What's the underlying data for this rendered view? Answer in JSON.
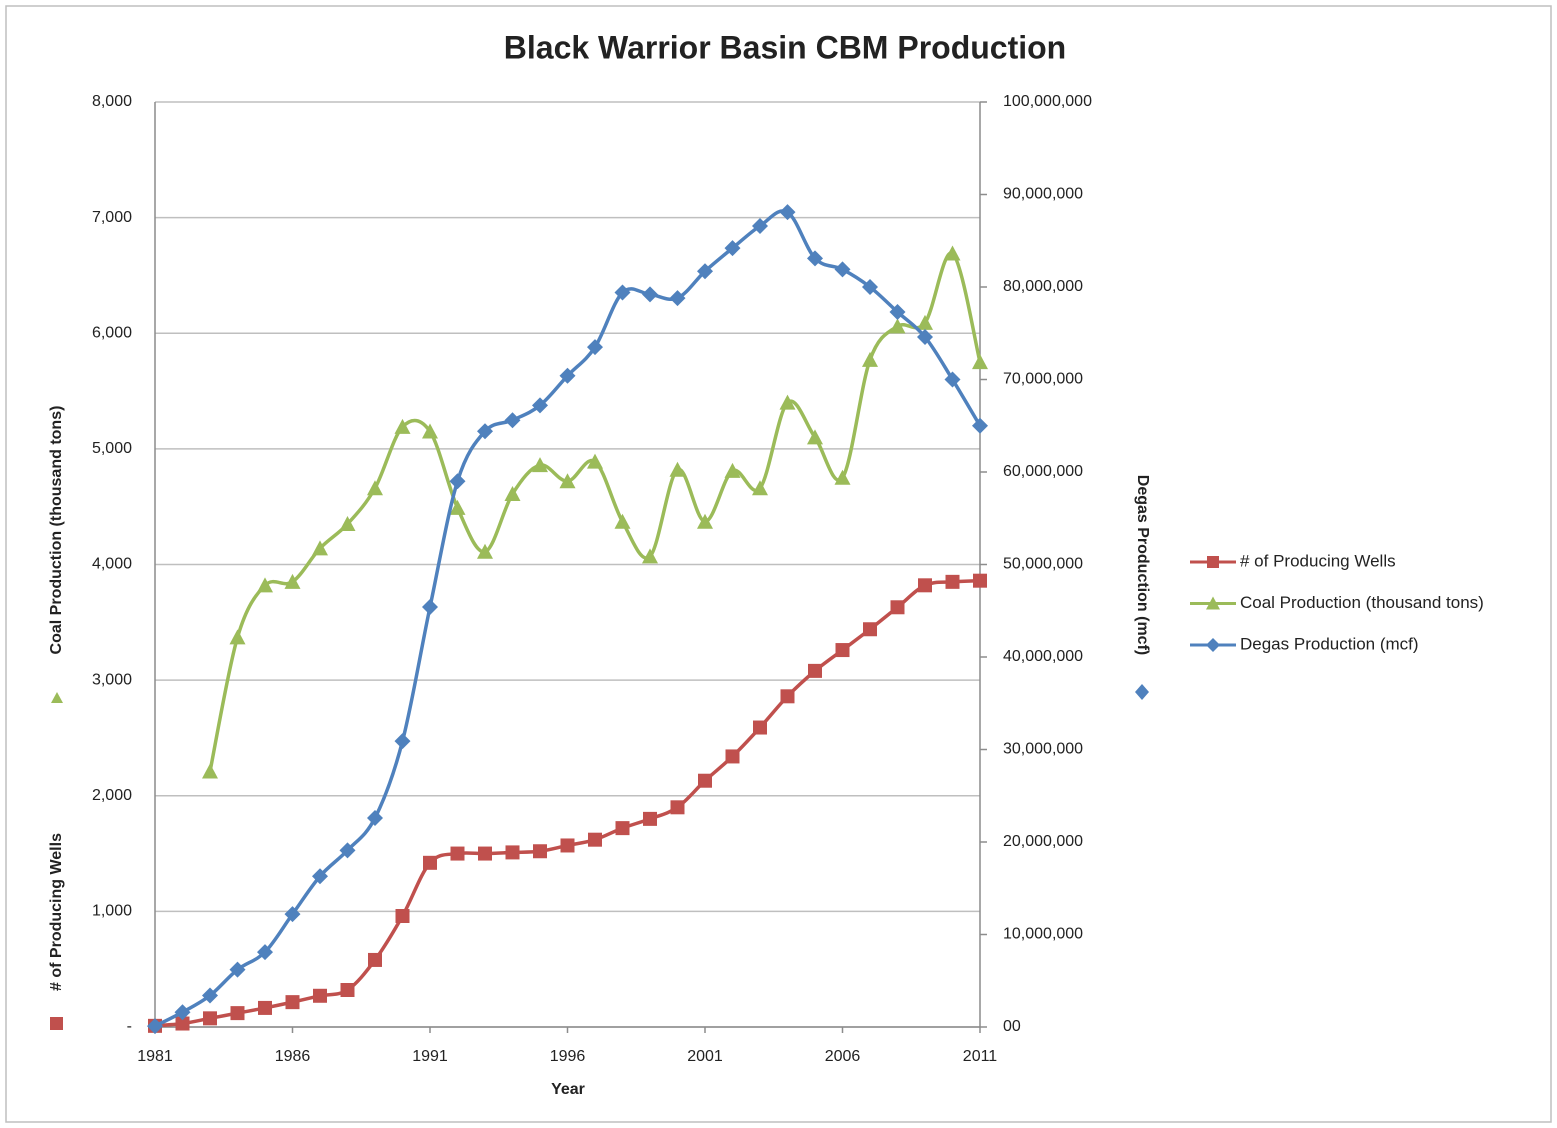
{
  "chart_data": {
    "type": "line",
    "title": "Black Warrior Basin CBM Production",
    "xlabel": "Year",
    "ylabels": [
      "# of Producing Wells",
      "Coal Production  (thousand tons)"
    ],
    "y2label": "Degas Production (mcf)",
    "x": [
      1981,
      1982,
      1983,
      1984,
      1985,
      1986,
      1987,
      1988,
      1989,
      1990,
      1991,
      1992,
      1993,
      1994,
      1995,
      1996,
      1997,
      1998,
      1999,
      2000,
      2001,
      2002,
      2003,
      2004,
      2005,
      2006,
      2007,
      2008,
      2009,
      2010,
      2011
    ],
    "xlim": [
      1981,
      2011
    ],
    "xticks": [
      1981,
      1986,
      1991,
      1996,
      2001,
      2006,
      2011
    ],
    "ylim": [
      0,
      8000
    ],
    "yticks": [
      {
        "value": 0,
        "label": "-"
      },
      {
        "value": 1000,
        "label": "1,000"
      },
      {
        "value": 2000,
        "label": "2,000"
      },
      {
        "value": 3000,
        "label": "3,000"
      },
      {
        "value": 4000,
        "label": "4,000"
      },
      {
        "value": 5000,
        "label": "5,000"
      },
      {
        "value": 6000,
        "label": "6,000"
      },
      {
        "value": 7000,
        "label": "7,000"
      },
      {
        "value": 8000,
        "label": "8,000"
      }
    ],
    "y2lim": [
      0,
      100000000
    ],
    "y2ticks": [
      {
        "value": 0,
        "label": "00"
      },
      {
        "value": 10000000,
        "label": "10,000,000"
      },
      {
        "value": 20000000,
        "label": "20,000,000"
      },
      {
        "value": 30000000,
        "label": "30,000,000"
      },
      {
        "value": 40000000,
        "label": "40,000,000"
      },
      {
        "value": 50000000,
        "label": "50,000,000"
      },
      {
        "value": 60000000,
        "label": "60,000,000"
      },
      {
        "value": 70000000,
        "label": "70,000,000"
      },
      {
        "value": 80000000,
        "label": "80,000,000"
      },
      {
        "value": 90000000,
        "label": "90,000,000"
      },
      {
        "value": 100000000,
        "label": "100,000,000"
      }
    ],
    "grid": true,
    "smooth": true,
    "legend": "right",
    "series": [
      {
        "name": "# of Producing Wells",
        "color": "#c0504d",
        "marker": "square",
        "values": [
          10,
          30,
          75,
          120,
          165,
          215,
          270,
          320,
          580,
          960,
          1420,
          1500,
          1500,
          1510,
          1520,
          1570,
          1620,
          1720,
          1800,
          1900,
          2130,
          2340,
          2590,
          2860,
          3080,
          3260,
          3440,
          3630,
          3820,
          3850,
          3860
        ]
      },
      {
        "name": "Coal Production (thousand tons)",
        "color": "#9bbb59",
        "marker": "triangle",
        "values": [
          null,
          null,
          2210,
          3370,
          3820,
          3850,
          4140,
          4350,
          4660,
          5190,
          5150,
          4490,
          4110,
          4610,
          4860,
          4720,
          4890,
          4370,
          4070,
          4820,
          4370,
          4810,
          4660,
          5400,
          5100,
          4750,
          5770,
          6060,
          6090,
          6690,
          5750
        ]
      },
      {
        "name": "Degas Production (mcf)",
        "color": "#4f81bd",
        "marker": "diamond",
        "axis": "y2",
        "values": [
          100000,
          1600000,
          3400000,
          6200000,
          8100000,
          12200000,
          16300000,
          19100000,
          22600000,
          30900000,
          45400000,
          59000000,
          64400000,
          65600000,
          67200000,
          70400000,
          73500000,
          79400000,
          79200000,
          78800000,
          81700000,
          84200000,
          86600000,
          88100000,
          83100000,
          81900000,
          80000000,
          77300000,
          74600000,
          70000000,
          65000000
        ]
      }
    ]
  }
}
